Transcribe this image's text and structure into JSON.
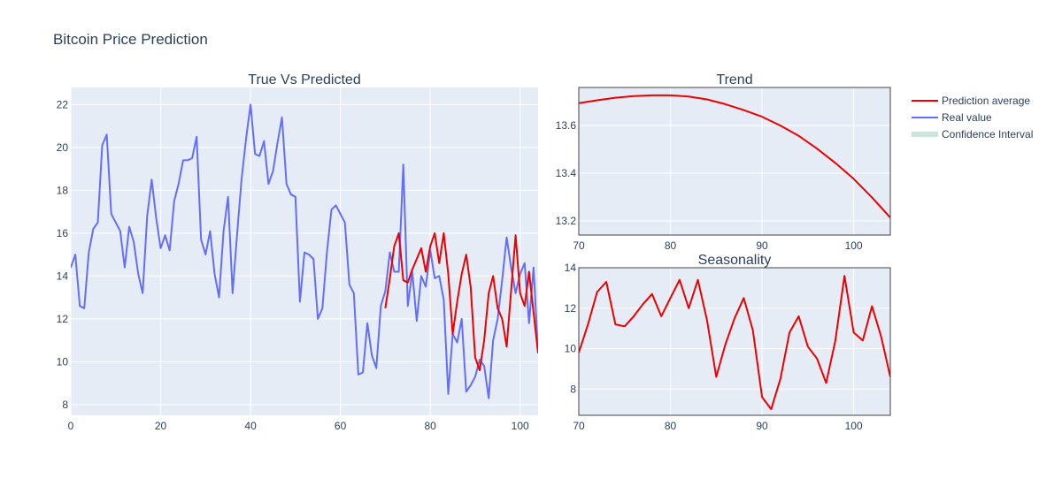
{
  "title": "Bitcoin Price Prediction",
  "colors": {
    "plot_bg": "#E5ECF6",
    "grid": "#ffffff",
    "prediction": "#ee0000",
    "real": "#636efa",
    "confidence": "#c8e6dc"
  },
  "legend": [
    {
      "label": "Prediction average",
      "color": "#ee0000",
      "kind": "line"
    },
    {
      "label": "Real value",
      "color": "#636efa",
      "kind": "line"
    },
    {
      "label": "Confidence Interval",
      "color": "#c8e6dc",
      "kind": "band"
    }
  ],
  "chart_data": [
    {
      "type": "line",
      "title": "True Vs Predicted",
      "xlim": [
        0,
        104
      ],
      "ylim": [
        7.5,
        22.8
      ],
      "xticks": [
        0,
        20,
        40,
        60,
        80,
        100
      ],
      "yticks": [
        8,
        10,
        12,
        14,
        16,
        18,
        20,
        22
      ],
      "series": [
        {
          "name": "Real value",
          "color": "#636efa",
          "x": [
            0,
            1,
            2,
            3,
            4,
            5,
            6,
            7,
            8,
            9,
            10,
            11,
            12,
            13,
            14,
            15,
            16,
            17,
            18,
            19,
            20,
            21,
            22,
            23,
            24,
            25,
            26,
            27,
            28,
            29,
            30,
            31,
            32,
            33,
            34,
            35,
            36,
            37,
            38,
            39,
            40,
            41,
            42,
            43,
            44,
            45,
            46,
            47,
            48,
            49,
            50,
            51,
            52,
            53,
            54,
            55,
            56,
            57,
            58,
            59,
            60,
            61,
            62,
            63,
            64,
            65,
            66,
            67,
            68,
            69,
            70,
            71,
            72,
            73,
            74,
            75,
            76,
            77,
            78,
            79,
            80,
            81,
            82,
            83,
            84,
            85,
            86,
            87,
            88,
            89,
            90,
            91,
            92,
            93,
            94,
            95,
            96,
            97,
            98,
            99,
            100,
            101,
            102,
            103,
            104
          ],
          "values": [
            14.4,
            15.0,
            12.6,
            12.5,
            15.1,
            16.2,
            16.5,
            20.1,
            20.6,
            16.9,
            16.5,
            16.1,
            14.4,
            16.3,
            15.6,
            14.1,
            13.2,
            16.8,
            18.5,
            16.7,
            15.3,
            15.9,
            15.2,
            17.5,
            18.3,
            19.4,
            19.4,
            19.5,
            20.5,
            15.7,
            15.0,
            16.1,
            14.1,
            13.0,
            16.1,
            17.7,
            13.2,
            15.9,
            18.5,
            20.4,
            22.0,
            19.7,
            19.6,
            20.3,
            18.3,
            18.9,
            20.2,
            21.4,
            18.3,
            17.8,
            17.7,
            12.8,
            15.1,
            15.0,
            14.8,
            12.0,
            12.5,
            15.1,
            17.1,
            17.3,
            16.9,
            16.5,
            13.6,
            13.2,
            9.4,
            9.5,
            11.8,
            10.3,
            9.7,
            12.6,
            13.3,
            15.1,
            14.2,
            14.2,
            19.2,
            12.6,
            14.2,
            11.9,
            14.0,
            13.5,
            15.2,
            13.9,
            14.0,
            12.9,
            8.5,
            11.3,
            10.9,
            12.0,
            8.6,
            8.9,
            9.3,
            10.1,
            9.8,
            8.3,
            11.0,
            12.0,
            13.8,
            15.8,
            14.4,
            13.2,
            14.1,
            14.6,
            11.8,
            14.4,
            10.4
          ]
        },
        {
          "name": "Prediction average",
          "color": "#ee0000",
          "x": [
            70,
            71,
            72,
            73,
            74,
            75,
            76,
            77,
            78,
            79,
            80,
            81,
            82,
            83,
            84,
            85,
            86,
            87,
            88,
            89,
            90,
            91,
            92,
            93,
            94,
            95,
            96,
            97,
            98,
            99,
            100,
            101,
            102,
            103,
            104
          ],
          "values": [
            12.5,
            13.9,
            15.4,
            16.0,
            13.8,
            13.7,
            14.3,
            14.8,
            15.3,
            14.2,
            15.4,
            16.0,
            14.6,
            16.0,
            14.1,
            11.3,
            12.8,
            14.1,
            15.0,
            13.5,
            10.2,
            9.6,
            11.0,
            13.2,
            14.0,
            12.5,
            12.0,
            10.7,
            13.3,
            15.9,
            13.2,
            12.6,
            14.2,
            12.3,
            10.4
          ]
        }
      ]
    },
    {
      "type": "line",
      "title": "Trend",
      "xlim": [
        70,
        104
      ],
      "ylim": [
        13.14,
        13.76
      ],
      "xticks": [
        70,
        80,
        90,
        100
      ],
      "yticks": [
        13.2,
        13.4,
        13.6
      ],
      "series": [
        {
          "name": "Prediction average",
          "color": "#ee0000",
          "x": [
            70,
            72,
            74,
            76,
            78,
            80,
            82,
            84,
            86,
            88,
            90,
            92,
            94,
            96,
            98,
            100,
            102,
            104
          ],
          "values": [
            13.694,
            13.706,
            13.717,
            13.724,
            13.727,
            13.727,
            13.722,
            13.71,
            13.69,
            13.665,
            13.637,
            13.6,
            13.557,
            13.503,
            13.443,
            13.376,
            13.298,
            13.213
          ]
        }
      ]
    },
    {
      "type": "line",
      "title": "Seasonality",
      "xlim": [
        70,
        104
      ],
      "ylim": [
        6.7,
        14.0
      ],
      "xticks": [
        70,
        80,
        90,
        100
      ],
      "yticks": [
        8,
        10,
        12,
        14
      ],
      "series": [
        {
          "name": "Prediction average",
          "color": "#ee0000",
          "x": [
            70,
            71,
            72,
            73,
            74,
            75,
            76,
            77,
            78,
            79,
            80,
            81,
            82,
            83,
            84,
            85,
            86,
            87,
            88,
            89,
            90,
            91,
            92,
            93,
            94,
            95,
            96,
            97,
            98,
            99,
            100,
            101,
            102,
            103,
            104
          ],
          "values": [
            9.8,
            11.2,
            12.8,
            13.3,
            11.2,
            11.1,
            11.6,
            12.2,
            12.7,
            11.6,
            12.5,
            13.4,
            12.0,
            13.4,
            11.4,
            8.6,
            10.2,
            11.5,
            12.5,
            10.9,
            7.6,
            7.0,
            8.5,
            10.8,
            11.6,
            10.1,
            9.5,
            8.3,
            10.4,
            13.6,
            10.8,
            10.4,
            12.1,
            10.6,
            8.6
          ]
        }
      ]
    }
  ]
}
